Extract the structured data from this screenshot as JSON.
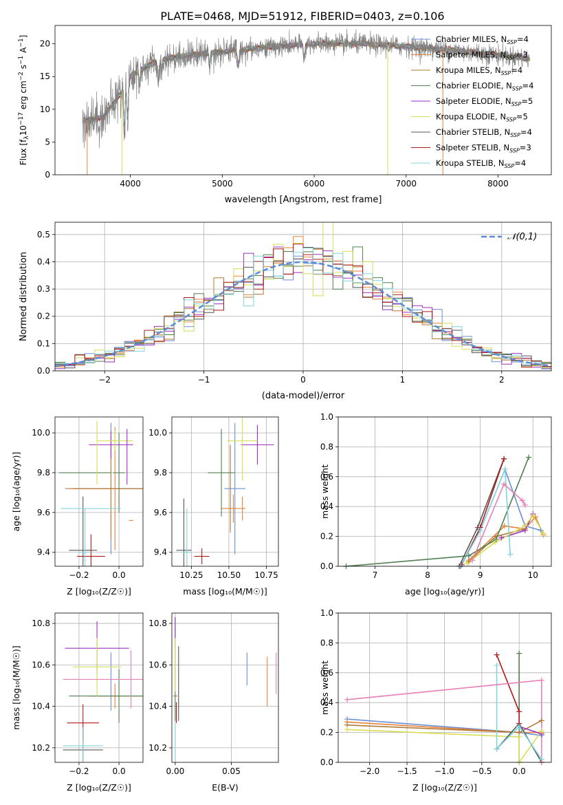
{
  "figure_title": "PLATE=0468, MJD=51912, FIBERID=0403, z=0.106",
  "models": [
    {
      "name": "Chabrier MILES",
      "nssp": "4",
      "color": "#6a8fd6"
    },
    {
      "name": "Salpeter MILES",
      "nssp": "3",
      "color": "#e8823a"
    },
    {
      "name": "Kroupa MILES",
      "nssp": "4",
      "color": "#b07a35"
    },
    {
      "name": "Chabrier ELODIE",
      "nssp": "4",
      "color": "#4f7f4f"
    },
    {
      "name": "Salpeter ELODIE",
      "nssp": "5",
      "color": "#9b2fbf"
    },
    {
      "name": "Kroupa ELODIE",
      "nssp": "5",
      "color": "#d8dc54"
    },
    {
      "name": "Chabrier STELIB",
      "nssp": "4",
      "color": "#555555"
    },
    {
      "name": "Salpeter STELIB",
      "nssp": "3",
      "color": "#b01818"
    },
    {
      "name": "Kroupa STELIB",
      "nssp": "4",
      "color": "#80d4dc"
    }
  ],
  "chart_data": [
    {
      "type": "line",
      "id": "spectrum",
      "xlabel": "wavelength [Angstrom, rest frame]",
      "ylabel": "Flux [f_λ 10^-17 erg cm^-2 s^-1 A^-1]",
      "xlim": [
        3180,
        8580
      ],
      "ylim": [
        0,
        22.8
      ],
      "xticks": [
        "4000",
        "5000",
        "6000",
        "7000",
        "8000"
      ],
      "yticks": [
        "0",
        "5",
        "10",
        "15",
        "20"
      ],
      "observed_color": "#808080",
      "model_trend": {
        "x": [
          3500,
          3700,
          3900,
          4000,
          4300,
          4600,
          5000,
          5500,
          6000,
          6500,
          7000,
          7500,
          8000,
          8350
        ],
        "y": [
          8.2,
          8.8,
          12.5,
          15.0,
          17.5,
          18.2,
          18.8,
          19.5,
          20.0,
          20.0,
          19.6,
          19.0,
          18.3,
          17.7
        ]
      },
      "legend_loc": "right"
    },
    {
      "type": "step",
      "id": "residuals",
      "xlabel": "(data-model)/error",
      "ylabel": "Normed distribution",
      "xlim": [
        -2.5,
        2.5
      ],
      "ylim": [
        0,
        0.545
      ],
      "xticks": [
        "−2",
        "−1",
        "0",
        "1",
        "2"
      ],
      "yticks": [
        "0.0",
        "0.1",
        "0.2",
        "0.3",
        "0.4",
        "0.5"
      ],
      "bin_width": 0.1,
      "reference_curve": {
        "label": "𝒩(0,1)",
        "mean": 0,
        "sigma": 1,
        "color": "#5b8ad6"
      },
      "grid": true,
      "legend_loc": "upper right"
    },
    {
      "type": "errorbar",
      "id": "age-vs-Z",
      "xlabel": "Z [log₁₀(Z/Z☉)]",
      "ylabel": "age [log₁₀(age/yr)]",
      "xlim": [
        -0.32,
        0.12
      ],
      "ylim": [
        9.33,
        10.08
      ],
      "xticks": [
        -0.2,
        0.0
      ],
      "yticks": [
        9.4,
        9.6,
        9.8,
        10.0
      ],
      "points": [
        {
          "model": 0,
          "x": -0.04,
          "xerr": 0.23,
          "y": 9.72,
          "yerr": 0.33
        },
        {
          "model": 1,
          "x": -0.02,
          "xerr": 0.24,
          "y": 9.72,
          "yerr": 0.31
        },
        {
          "model": 2,
          "x": -0.04,
          "xerr": 0.19,
          "y": 9.72,
          "yerr": 0.25
        },
        {
          "model": 3,
          "x": 0.0,
          "xerr": 0.03,
          "y": 9.8,
          "yerr": 0.2
        },
        {
          "model": 3,
          "x": -0.17,
          "xerr": 0.13,
          "y": 9.8,
          "yerr": 0.0
        },
        {
          "model": 4,
          "x": -0.04,
          "xerr": 0.11,
          "y": 9.94,
          "yerr": 0.07
        },
        {
          "model": 5,
          "x": -0.02,
          "xerr": 0.09,
          "y": 9.96,
          "yerr": 0.05
        },
        {
          "model": 5,
          "x": -0.11,
          "xerr": 0.0,
          "y": 9.9,
          "yerr": 0.16
        },
        {
          "model": 6,
          "x": -0.18,
          "xerr": 0.07,
          "y": 9.41,
          "yerr": 0.27
        },
        {
          "model": 7,
          "x": -0.14,
          "xerr": 0.07,
          "y": 9.38,
          "yerr": 0.11
        },
        {
          "model": 8,
          "x": -0.17,
          "xerr": 0.03,
          "y": 9.4,
          "yerr": 0.22
        },
        {
          "model": 4,
          "x": 0.04,
          "xerr": 0.0,
          "y": 9.88,
          "yerr": 0.14
        },
        {
          "model": 1,
          "x": 0.06,
          "xerr": 0.0,
          "y": 9.56,
          "yerr": 0.0
        },
        {
          "model": 8,
          "x": -0.14,
          "xerr": 0.15,
          "y": 9.62,
          "yerr": 0.0
        }
      ]
    },
    {
      "type": "errorbar",
      "id": "age-vs-mass",
      "xlabel": "mass [log₁₀(M/M☉)]",
      "ylabel": "",
      "xlim": [
        10.12,
        10.83
      ],
      "ylim": [
        9.33,
        10.08
      ],
      "xticks": [
        10.25,
        10.5,
        10.75
      ],
      "yticks": [
        9.4,
        9.6,
        9.8,
        10.0
      ],
      "points": [
        {
          "model": 0,
          "x": 10.54,
          "xerr": 0.07,
          "y": 9.72,
          "yerr": 0.33
        },
        {
          "model": 1,
          "x": 10.53,
          "xerr": 0.08,
          "y": 9.62,
          "yerr": 0.07
        },
        {
          "model": 3,
          "x": 10.45,
          "xerr": 0.09,
          "y": 9.8,
          "yerr": 0.22
        },
        {
          "model": 4,
          "x": 10.69,
          "xerr": 0.11,
          "y": 9.94,
          "yerr": 0.1
        },
        {
          "model": 5,
          "x": 10.59,
          "xerr": 0.1,
          "y": 9.96,
          "yerr": 0.2
        },
        {
          "model": 6,
          "x": 10.2,
          "xerr": 0.05,
          "y": 9.41,
          "yerr": 0.26
        },
        {
          "model": 7,
          "x": 10.32,
          "xerr": 0.05,
          "y": 9.38,
          "yerr": 0.04
        },
        {
          "model": 8,
          "x": 10.22,
          "xerr": 0.03,
          "y": 9.4,
          "yerr": 0.22
        },
        {
          "model": 2,
          "x": 10.51,
          "xerr": 0.0,
          "y": 9.72,
          "yerr": 0.22
        },
        {
          "model": 1,
          "x": 10.59,
          "xerr": 0.0,
          "y": 9.62,
          "yerr": 0.06
        }
      ]
    },
    {
      "type": "line",
      "id": "massweight-vs-age",
      "xlabel": "age [log₁₀(age/yr)]",
      "ylabel": "mass weight",
      "xlim": [
        6.3,
        10.35
      ],
      "ylim": [
        0,
        1.0
      ],
      "xticks": [
        7,
        8,
        9,
        10
      ],
      "yticks": [
        0.0,
        0.2,
        0.4,
        0.6,
        0.8,
        1.0
      ],
      "series": [
        {
          "model": 0,
          "x": [
            8.62,
            9.0,
            9.47,
            9.85,
            10.15
          ],
          "y": [
            0.0,
            0.24,
            0.65,
            0.27,
            0.24
          ]
        },
        {
          "model": 1,
          "x": [
            8.78,
            9.46,
            9.85,
            10.05,
            10.2
          ],
          "y": [
            0.04,
            0.27,
            0.25,
            0.33,
            0.21
          ]
        },
        {
          "model": 2,
          "x": [
            8.78,
            9.3,
            9.85
          ],
          "y": [
            0.03,
            0.2,
            0.25
          ]
        },
        {
          "model": 3,
          "x": [
            6.45,
            8.78,
            9.3,
            9.92
          ],
          "y": [
            0.0,
            0.07,
            0.18,
            0.73
          ]
        },
        {
          "model": 4,
          "x": [
            9.4,
            9.85,
            10.0
          ],
          "y": [
            0.19,
            0.24,
            0.35
          ]
        },
        {
          "model": 5,
          "x": [
            8.75,
            9.28,
            9.85,
            10.0,
            10.2
          ],
          "y": [
            0.02,
            0.16,
            0.27,
            0.34,
            0.22
          ]
        },
        {
          "model": 6,
          "x": [
            8.6,
            8.95,
            9.45
          ],
          "y": [
            0.0,
            0.26,
            0.72
          ]
        },
        {
          "model": 7,
          "x": [
            8.65,
            9.0,
            9.45
          ],
          "y": [
            0.01,
            0.26,
            0.72
          ]
        },
        {
          "model": 8,
          "x": [
            8.63,
            9.0,
            9.47,
            9.57
          ],
          "y": [
            0.0,
            0.24,
            0.65,
            0.08
          ]
        },
        {
          "model": 1,
          "x": [
            8.85,
            9.45,
            9.8,
            9.85
          ],
          "y": [
            0.04,
            0.55,
            0.44,
            0.41
          ],
          "color_override": "#e67fb5"
        }
      ]
    },
    {
      "type": "errorbar",
      "id": "mass-vs-Z",
      "xlabel": "Z [log₁₀(Z/Z☉)]",
      "ylabel": "mass [log₁₀(M/M☉)]",
      "xlim": [
        -0.32,
        0.12
      ],
      "ylim": [
        10.13,
        10.85
      ],
      "xticks": [
        -0.2,
        0.0
      ],
      "yticks": [
        10.2,
        10.4,
        10.6,
        10.8
      ],
      "points": [
        {
          "model": 0,
          "x": -0.04,
          "xerr": 0.0,
          "y": 10.52,
          "yerr": 0.14
        },
        {
          "model": 1,
          "x": -0.02,
          "xerr": 0.12,
          "y": 10.45,
          "yerr": 0.06
        },
        {
          "model": 2,
          "x": 0.0,
          "xerr": 0.16,
          "y": 10.45,
          "yerr": 0.0
        },
        {
          "model": 3,
          "x": 0.0,
          "xerr": 0.25,
          "y": 10.45,
          "yerr": 0.13
        },
        {
          "model": 4,
          "x": -0.11,
          "xerr": 0.16,
          "y": 10.68,
          "yerr": 0.13
        },
        {
          "model": 5,
          "x": -0.11,
          "xerr": 0.12,
          "y": 10.59,
          "yerr": 0.14
        },
        {
          "model": 6,
          "x": -0.18,
          "xerr": 0.1,
          "y": 10.19,
          "yerr": 0.11
        },
        {
          "model": 7,
          "x": -0.18,
          "xerr": 0.08,
          "y": 10.32,
          "yerr": 0.09
        },
        {
          "model": 8,
          "x": -0.18,
          "xerr": 0.1,
          "y": 10.21,
          "yerr": 0.09
        },
        {
          "model": 1,
          "x": -0.08,
          "xerr": 0.2,
          "y": 10.53,
          "yerr": 0.0,
          "color_override": "#e67fb5"
        },
        {
          "model": 1,
          "x": 0.06,
          "xerr": 0.0,
          "y": 10.53,
          "yerr": 0.14,
          "color_override": "#e67fb5"
        }
      ]
    },
    {
      "type": "errorbar",
      "id": "mass-vs-EBV",
      "xlabel": "E(B-V)",
      "ylabel": "",
      "xlim": [
        -0.003,
        0.092
      ],
      "ylim": [
        10.13,
        10.85
      ],
      "xticks": [
        0.0,
        0.05
      ],
      "yticks": [
        10.2,
        10.4,
        10.6,
        10.8
      ],
      "points": [
        {
          "model": 0,
          "x": 0.064,
          "xerr": 0.0,
          "y": 10.58,
          "yerr": 0.08
        },
        {
          "model": 1,
          "x": 0.082,
          "xerr": 0.0,
          "y": 10.52,
          "yerr": 0.12
        },
        {
          "model": 2,
          "x": 0.0,
          "xerr": 0.0,
          "y": 10.45,
          "yerr": 0.0
        },
        {
          "model": 3,
          "x": 0.0,
          "xerr": 0.0,
          "y": 10.58,
          "yerr": 0.25
        },
        {
          "model": 4,
          "x": 0.0,
          "xerr": 0.0,
          "y": 10.76,
          "yerr": 0.07
        },
        {
          "model": 5,
          "x": 0.0,
          "xerr": 0.0,
          "y": 10.6,
          "yerr": 0.13
        },
        {
          "model": 6,
          "x": 0.003,
          "xerr": 0.0,
          "y": 10.51,
          "yerr": 0.18
        },
        {
          "model": 7,
          "x": 0.001,
          "xerr": 0.0,
          "y": 10.37,
          "yerr": 0.05
        },
        {
          "model": 8,
          "x": 0.0,
          "xerr": 0.0,
          "y": 10.22,
          "yerr": 0.1
        },
        {
          "model": 1,
          "x": 0.09,
          "xerr": 0.0,
          "y": 10.56,
          "yerr": 0.1,
          "color_override": "#e67fb5"
        }
      ]
    },
    {
      "type": "line",
      "id": "massweight-vs-Z",
      "xlabel": "Z [log₁₀(Z/Z☉)]",
      "ylabel": "mass weight",
      "xlim": [
        -2.42,
        0.43
      ],
      "ylim": [
        0,
        1.0
      ],
      "xticks": [
        -2.0,
        -1.5,
        -1.0,
        -0.5,
        0.0
      ],
      "yticks": [
        0.0,
        0.2,
        0.4,
        0.6,
        0.8,
        1.0
      ],
      "series": [
        {
          "model": 0,
          "x": [
            -2.3,
            0.0,
            0.3
          ],
          "y": [
            0.29,
            0.2,
            0.18
          ]
        },
        {
          "model": 1,
          "x": [
            -2.3,
            0.0,
            0.3
          ],
          "y": [
            0.27,
            0.2,
            0.2
          ]
        },
        {
          "model": 2,
          "x": [
            -2.3,
            0.0,
            0.3
          ],
          "y": [
            0.25,
            0.2,
            0.28
          ]
        },
        {
          "model": 3,
          "x": [
            0.0,
            0.0
          ],
          "y": [
            0.0,
            0.73
          ]
        },
        {
          "model": 4,
          "x": [
            0.0,
            0.3
          ],
          "y": [
            0.24,
            0.19
          ]
        },
        {
          "model": 5,
          "x": [
            -2.3,
            0.0,
            0.0,
            0.3
          ],
          "y": [
            0.22,
            0.17,
            0.0,
            0.21
          ]
        },
        {
          "model": 6,
          "x": [
            -0.3,
            0.0,
            0.3
          ],
          "y": [
            0.09,
            0.26,
            0.0
          ]
        },
        {
          "model": 7,
          "x": [
            -0.3,
            0.0,
            0.0
          ],
          "y": [
            0.72,
            0.34,
            0.26
          ]
        },
        {
          "model": 8,
          "x": [
            -0.3,
            -0.3,
            0.0,
            0.3
          ],
          "y": [
            0.65,
            0.09,
            0.24,
            0.02
          ]
        },
        {
          "model": 1,
          "x": [
            -2.3,
            0.3,
            0.3
          ],
          "y": [
            0.42,
            0.55,
            0.0
          ],
          "color_override": "#e67fb5"
        }
      ]
    }
  ]
}
